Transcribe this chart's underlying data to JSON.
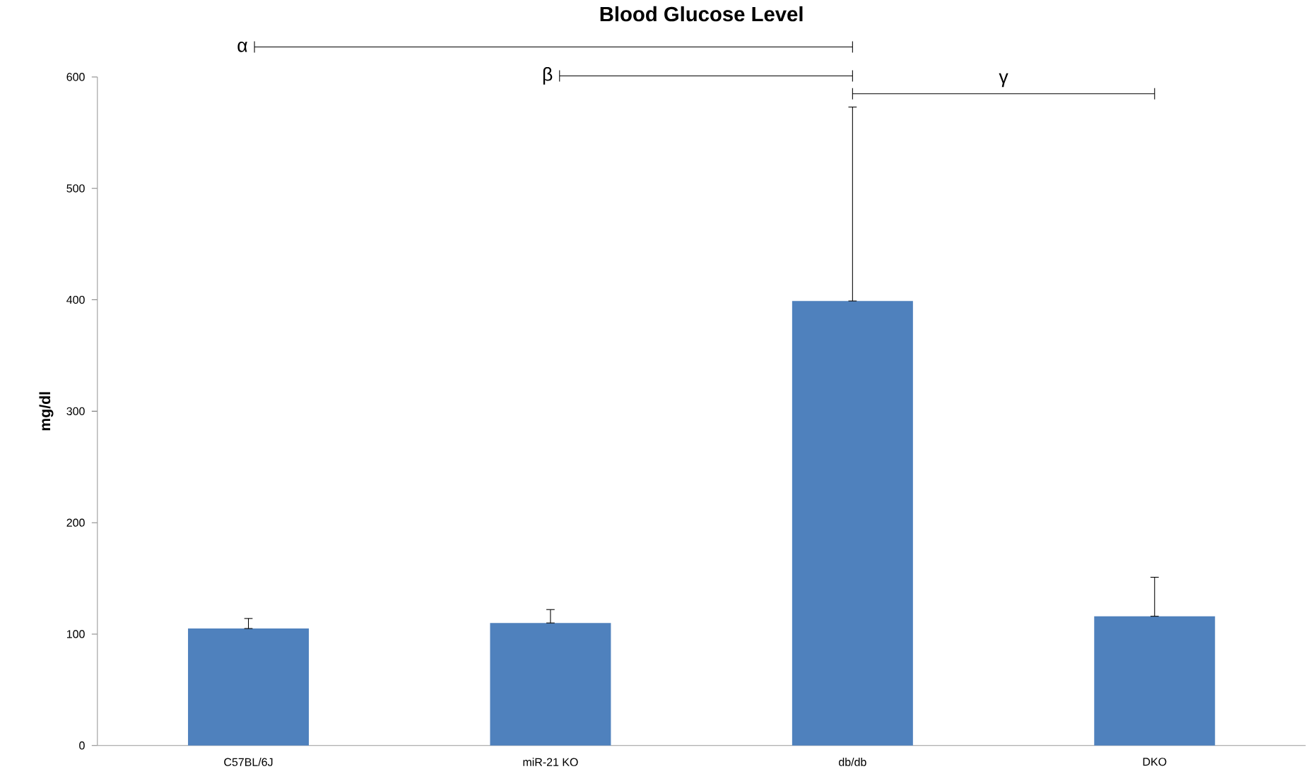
{
  "chart_data": {
    "type": "bar",
    "title": "Blood Glucose Level",
    "ylabel": "mg/dl",
    "categories": [
      "C57BL/6J",
      "miR-21 KO",
      "db/db",
      "DKO"
    ],
    "values": [
      105,
      110,
      399,
      116
    ],
    "errors": [
      [
        105,
        114
      ],
      [
        110,
        122
      ],
      [
        399,
        573
      ],
      [
        116,
        151
      ]
    ],
    "color": "#4f81bd",
    "ylim": [
      0,
      600
    ],
    "yticks": [
      0,
      100,
      200,
      300,
      400,
      500,
      600
    ],
    "annotations": [
      "α",
      "β",
      "γ"
    ],
    "grid": false
  }
}
